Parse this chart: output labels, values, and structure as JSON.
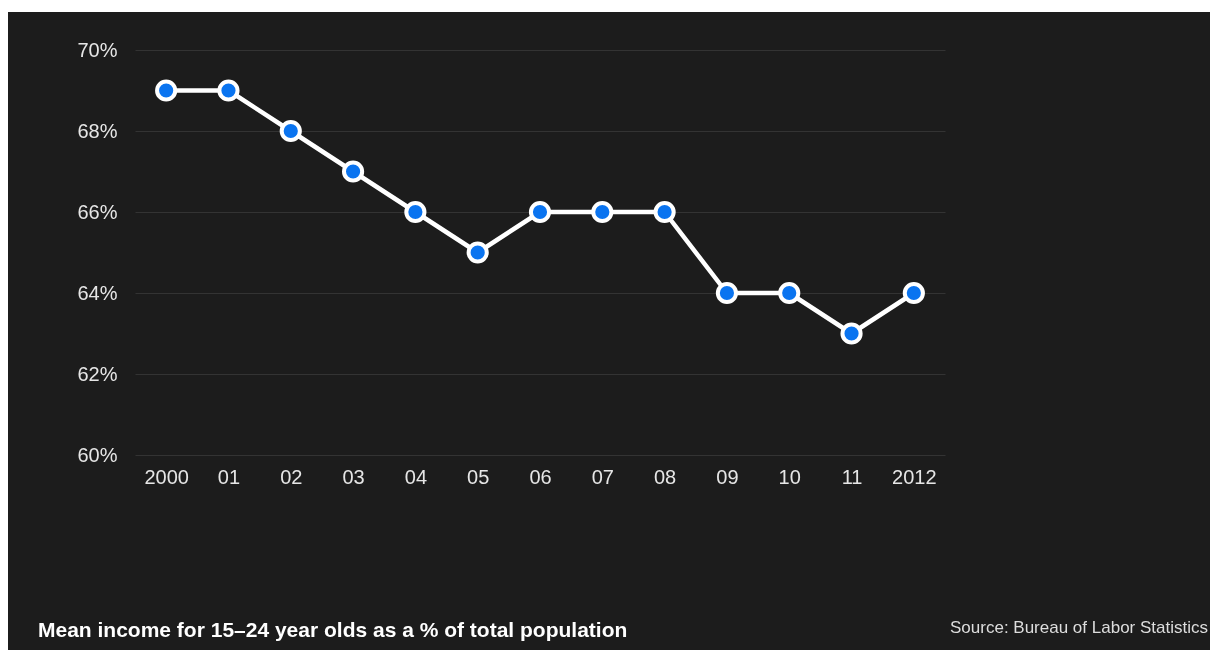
{
  "chart_data": {
    "type": "line",
    "title": "Mean income for 15–24 year olds as a % of total population",
    "annotations": [
      "Source: Bureau of Labor Statistics"
    ],
    "categories": [
      "2000",
      "01",
      "02",
      "03",
      "04",
      "05",
      "06",
      "07",
      "08",
      "09",
      "10",
      "11",
      "2012"
    ],
    "series": [
      {
        "color": "#ffffff",
        "values": [
          69,
          69,
          68,
          67,
          66,
          65,
          66,
          66,
          66,
          64,
          64,
          63,
          64
        ]
      }
    ],
    "marker": "circle",
    "grid": "y",
    "ylim": [
      60,
      70
    ],
    "yticks": [
      {
        "value": 60,
        "label": "60%"
      },
      {
        "value": 62,
        "label": "62%"
      },
      {
        "value": 64,
        "label": "64%"
      },
      {
        "value": 66,
        "label": "66%"
      },
      {
        "value": 68,
        "label": "68%"
      },
      {
        "value": 70,
        "label": "70%"
      }
    ]
  }
}
